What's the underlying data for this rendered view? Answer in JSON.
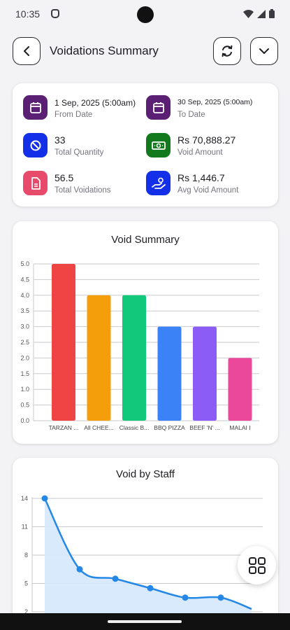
{
  "status_bar": {
    "time": "10:35"
  },
  "header": {
    "title": "Voidations Summary"
  },
  "summary": {
    "from_date": {
      "value": "1 Sep, 2025 (5:00am)",
      "label": "From Date",
      "icon": "calendar-icon",
      "color": "#5b1f73"
    },
    "to_date": {
      "value": "30 Sep, 2025 (5:00am)",
      "label": "To Date",
      "icon": "calendar-icon",
      "color": "#5b1f73"
    },
    "total_quantity": {
      "value": "33",
      "label": "Total Quantity",
      "icon": "block-icon",
      "color": "#1330e8"
    },
    "void_amount": {
      "value": "Rs 70,888.27",
      "label": "Void Amount",
      "icon": "cash-icon",
      "color": "#127a1c"
    },
    "total_voidations": {
      "value": "56.5",
      "label": "Total Voidations",
      "icon": "document-icon",
      "color": "#e84a6b"
    },
    "avg_void_amount": {
      "value": "Rs 1,446.7",
      "label": "Avg Void Amount",
      "icon": "hand-money-icon",
      "color": "#1330e8"
    }
  },
  "void_summary": {
    "title": "Void Summary",
    "chart_data": {
      "type": "bar",
      "categories": [
        "TARZAN ...",
        "All CHEE...",
        "Classic B...",
        "BBQ PIZZA",
        "BEEF 'N' ...",
        "MALAI I"
      ],
      "values": [
        5.0,
        4.0,
        4.0,
        3.0,
        3.0,
        2.0
      ],
      "colors": [
        "#ef4444",
        "#f59e0b",
        "#10c97a",
        "#3b82f6",
        "#8b5cf6",
        "#ec4899"
      ],
      "ylim": [
        0,
        5.0
      ],
      "yticks": [
        "0.0",
        "0.5",
        "1.0",
        "1.5",
        "2.0",
        "2.5",
        "3.0",
        "3.5",
        "4.0",
        "4.5",
        "5.0"
      ],
      "grid": true
    }
  },
  "void_by_staff": {
    "title": "Void by Staff",
    "chart_data": {
      "type": "area",
      "values": [
        14,
        6.5,
        5.5,
        4.5,
        3.5,
        3.5,
        2.3
      ],
      "ylim": [
        2,
        14
      ],
      "yticks": [
        "2",
        "5",
        "8",
        "11",
        "14"
      ],
      "color": "#2588e6",
      "fill_color": "#d4e8fb",
      "grid": true
    }
  }
}
